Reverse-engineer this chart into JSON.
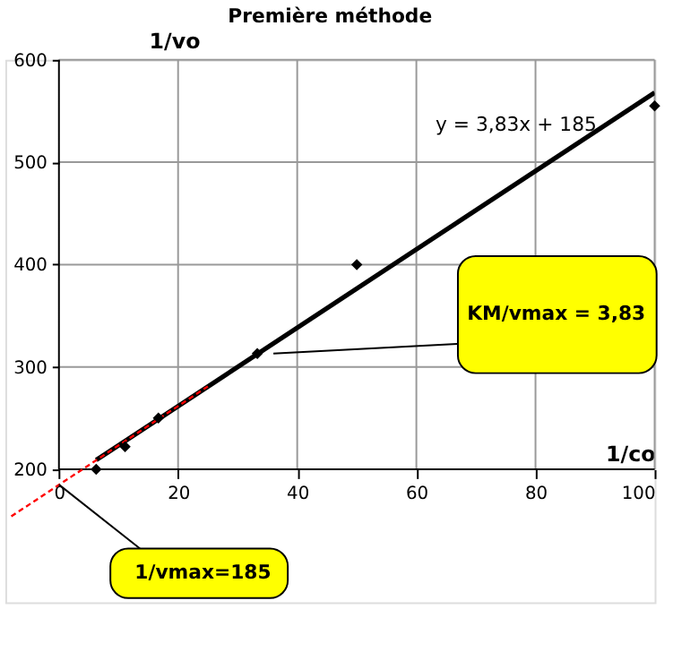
{
  "chart_data": {
    "type": "scatter",
    "title": "Première méthode",
    "xlabel": "1/co",
    "ylabel": "1/vo",
    "xlim": [
      -9,
      100
    ],
    "ylim": [
      70,
      600
    ],
    "xticks": [
      0,
      20,
      40,
      60,
      80,
      100
    ],
    "yticks": [
      200,
      300,
      400,
      500,
      600
    ],
    "grid": true,
    "marker": "diamond",
    "series": [
      {
        "type": "line",
        "marker": "none",
        "color": "#000000",
        "line_style": "solid",
        "x": [
          6.25,
          100
        ],
        "values": [
          209,
          568
        ]
      },
      {
        "type": "line",
        "marker": "none",
        "color": "#ff0000",
        "line_style": "dashed",
        "x": [
          -8,
          25
        ],
        "values": [
          154,
          281
        ]
      },
      {
        "color": "#000000",
        "x": [
          6.25,
          11.1,
          16.7,
          33.3,
          50,
          100
        ],
        "values": [
          200,
          222,
          250,
          313,
          400,
          555
        ]
      }
    ],
    "ref_lines": [
      {
        "axis": "x",
        "value": 0,
        "color": "#000000"
      }
    ],
    "annotations": [
      "y = 3,83x + 185",
      {
        "text": "KM/vmax = 3,83",
        "x": 36,
        "y": 313
      },
      {
        "text": "1/vmax=185",
        "x": 0,
        "y": 185
      }
    ]
  }
}
